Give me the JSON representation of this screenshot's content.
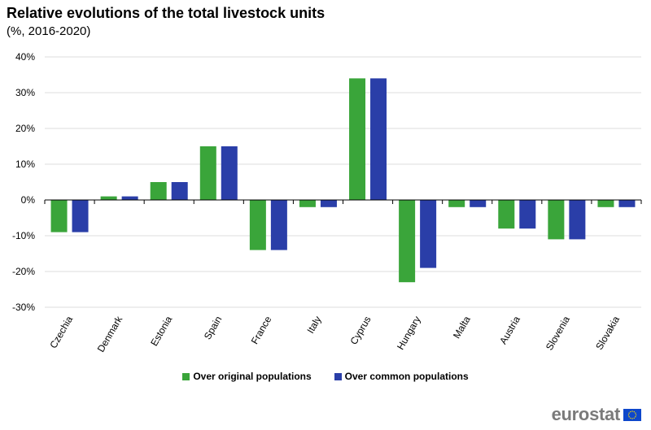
{
  "colors": {
    "series1": "#3aa53a",
    "series2": "#2a3ea8",
    "grid": "#dcdcdc",
    "axis": "#000000",
    "logo_text": "#7a7a7a",
    "eu_blue": "#0e47cb",
    "eu_star": "#ffdd00"
  },
  "logo": {
    "text": "eurostat"
  },
  "chart_data": {
    "type": "bar",
    "title": "Relative evolutions of the total livestock units",
    "subtitle": "(%, 2016-2020)",
    "xlabel": "",
    "ylabel": "",
    "ylim": [
      -30,
      40
    ],
    "yticks": [
      40,
      30,
      20,
      10,
      0,
      -10,
      -20,
      -30
    ],
    "ytick_labels": [
      "40%",
      "30%",
      "20%",
      "10%",
      "0%",
      "-10%",
      "-20%",
      "-30%"
    ],
    "grid": true,
    "legend_position": "bottom-center",
    "categories": [
      "Czechia",
      "Denmark",
      "Estonia",
      "Spain",
      "France",
      "Italy",
      "Cyprus",
      "Hungary",
      "Malta",
      "Austria",
      "Slovenia",
      "Slovakia"
    ],
    "series": [
      {
        "name": "Over original populations",
        "values": [
          -9,
          1,
          5,
          15,
          -14,
          -2,
          34,
          -23,
          -2,
          -8,
          -11,
          -2
        ]
      },
      {
        "name": "Over common populations",
        "values": [
          -9,
          1,
          5,
          15,
          -14,
          -2,
          34,
          -19,
          -2,
          -8,
          -11,
          -2
        ]
      }
    ]
  }
}
